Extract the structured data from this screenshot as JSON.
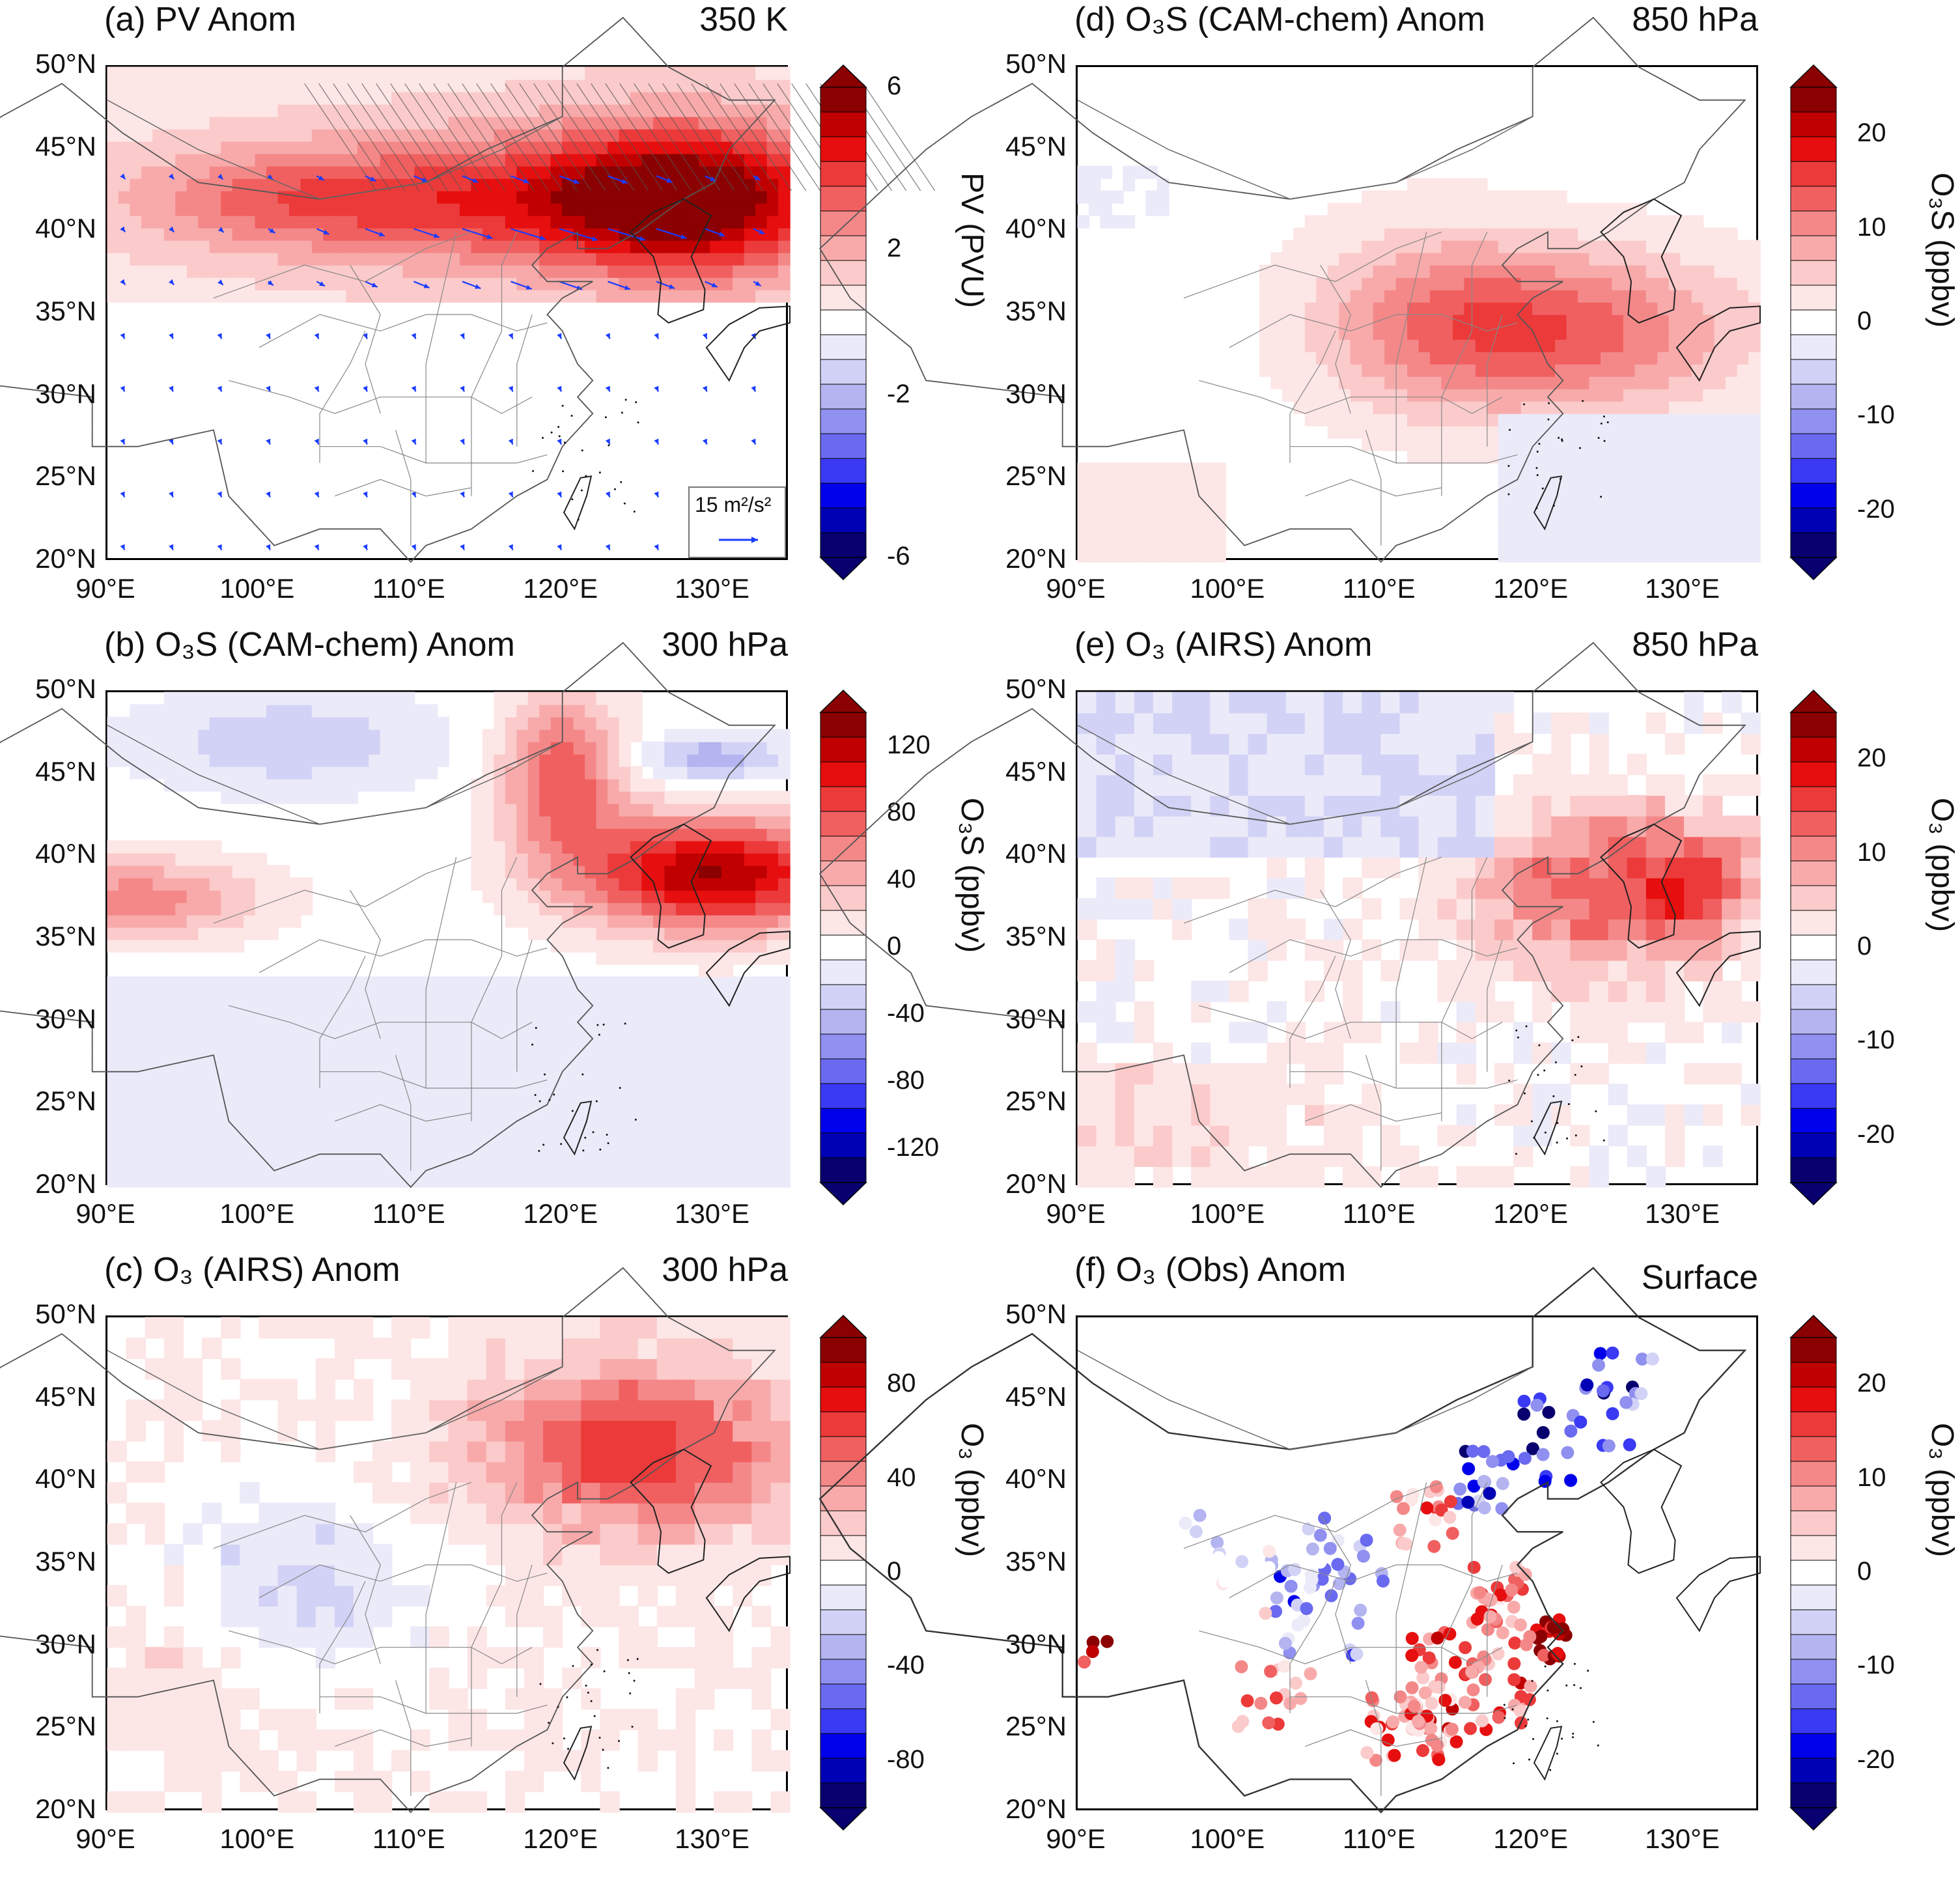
{
  "lat_labels": [
    "50°N",
    "45°N",
    "40°N",
    "35°N",
    "30°N",
    "25°N",
    "20°N"
  ],
  "lon_labels": [
    "90°E",
    "100°E",
    "110°E",
    "120°E",
    "130°E"
  ],
  "colors": {
    "dark_red": "#8b0000",
    "red": "#e80000",
    "mid_red": "#f26060",
    "light_red": "#f8b0b0",
    "pale_red": "#fde4e4",
    "white": "#ffffff",
    "pale_blue": "#e4e4fa",
    "light_blue": "#b4b4f0",
    "blue": "#0000ea",
    "dark_blue": "#00008b",
    "arrow": "#1a3cff"
  },
  "panels": [
    {
      "id": "a",
      "title": "(a) PV Anom",
      "level": "350 K",
      "unit": "PV (PVU)",
      "ticks": [
        "6",
        "2",
        "-2",
        "-6"
      ],
      "type": "contour_vectors",
      "legend": {
        "label": "15 m²/s²",
        "value": 15,
        "units": "m²/s²"
      }
    },
    {
      "id": "b",
      "title": "(b) O₃S (CAM-chem) Anom",
      "level": "300 hPa",
      "unit": "O₃S (ppbv)",
      "ticks": [
        "120",
        "80",
        "40",
        "0",
        "-40",
        "-80",
        "-120"
      ],
      "type": "contour"
    },
    {
      "id": "c",
      "title": "(c) O₃ (AIRS) Anom",
      "level": "300 hPa",
      "unit": "O₃ (ppbv)",
      "ticks": [
        "80",
        "40",
        "0",
        "-40",
        "-80"
      ],
      "type": "grid"
    },
    {
      "id": "d",
      "title": "(d) O₃S (CAM-chem) Anom",
      "level": "850 hPa",
      "unit": "O₃S (ppbv)",
      "ticks": [
        "20",
        "10",
        "0",
        "-10",
        "-20"
      ],
      "type": "contour"
    },
    {
      "id": "e",
      "title": "(e) O₃ (AIRS) Anom",
      "level": "850 hPa",
      "unit": "O₃ (ppbv)",
      "ticks": [
        "20",
        "10",
        "0",
        "-10",
        "-20"
      ],
      "type": "grid"
    },
    {
      "id": "f",
      "title": "(f) O₃ (Obs) Anom",
      "level": "Surface",
      "unit": "O₃ (ppbv)",
      "ticks": [
        "20",
        "10",
        "0",
        "-10",
        "-20"
      ],
      "type": "stations"
    }
  ]
}
